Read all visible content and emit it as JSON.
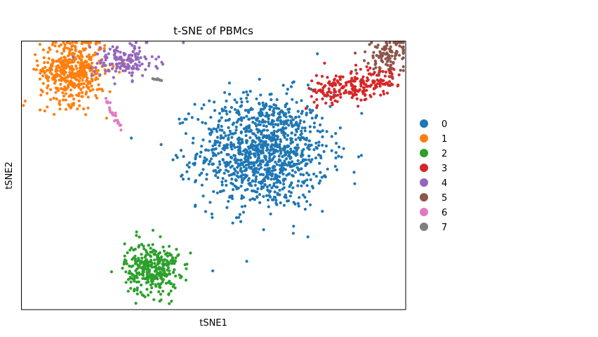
{
  "chart_data": {
    "type": "scatter",
    "title": "t-SNE of PBMcs",
    "xlabel": "tSNE1",
    "ylabel": "tSNE2",
    "xlim": [
      -40,
      60
    ],
    "ylim": [
      -40,
      45
    ],
    "grid": false,
    "ticks": "hidden",
    "legend_position": "right",
    "series": [
      {
        "name": "0",
        "color": "#1f77b4",
        "n_points": 1150,
        "center": [
          23,
          10
        ],
        "spread": [
          8.5,
          9
        ],
        "shape": "ellipse"
      },
      {
        "name": "1",
        "color": "#ff7f0e",
        "n_points": 480,
        "center": [
          -26.5,
          35.5
        ],
        "spread": [
          4.2,
          5.2
        ],
        "shape": "ellipse"
      },
      {
        "name": "2",
        "color": "#2ca02c",
        "n_points": 330,
        "center": [
          -6,
          -27
        ],
        "spread": [
          3.5,
          4.2
        ],
        "shape": "ellipse"
      },
      {
        "name": "3",
        "color": "#d62728",
        "n_points": 240,
        "center": [
          46,
          31
        ],
        "spread": [
          9.5,
          3.6
        ],
        "shape": "band"
      },
      {
        "name": "4",
        "color": "#9467bd",
        "n_points": 150,
        "center": [
          -13,
          38.5
        ],
        "spread": [
          4.2,
          2.8
        ],
        "shape": "ellipse"
      },
      {
        "name": "5",
        "color": "#8c564b",
        "n_points": 110,
        "center": [
          55.5,
          40.5
        ],
        "spread": [
          2.8,
          2.8
        ],
        "shape": "ellipse"
      },
      {
        "name": "6",
        "color": "#e377c2",
        "n_points": 22,
        "center": [
          -16,
          22
        ],
        "spread": [
          1,
          5
        ],
        "shape": "streak"
      },
      {
        "name": "7",
        "color": "#7f7f7f",
        "n_points": 8,
        "center": [
          -4.5,
          32.7
        ],
        "spread": [
          1,
          0.4
        ],
        "shape": "streak"
      }
    ]
  }
}
